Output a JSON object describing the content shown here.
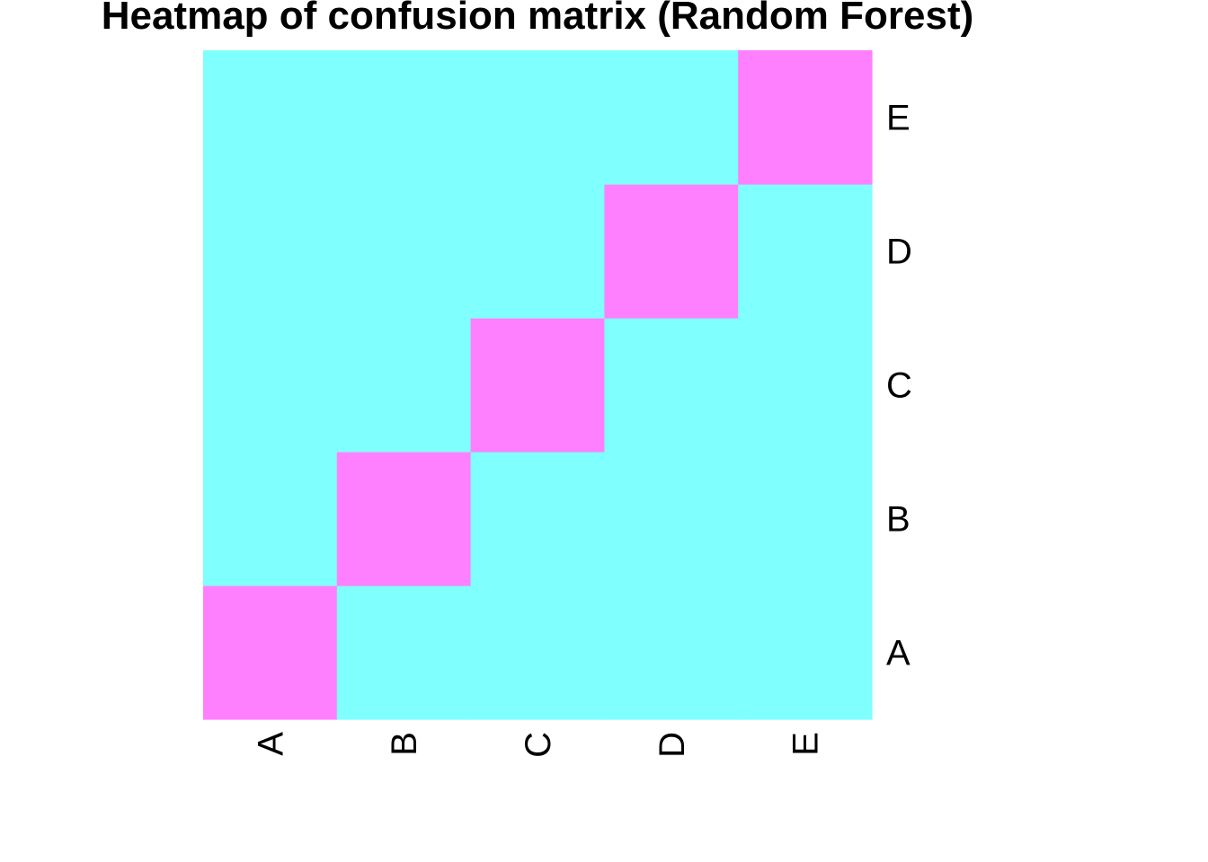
{
  "chart_data": {
    "type": "heatmap",
    "title": "Heatmap of confusion matrix (Random Forest)",
    "x_categories": [
      "A",
      "B",
      "C",
      "D",
      "E"
    ],
    "y_categories": [
      "A",
      "B",
      "C",
      "D",
      "E"
    ],
    "xlabel": "",
    "ylabel": "",
    "values": [
      [
        1,
        0,
        0,
        0,
        0
      ],
      [
        0,
        1,
        0,
        0,
        0
      ],
      [
        0,
        0,
        1,
        0,
        0
      ],
      [
        0,
        0,
        0,
        1,
        0
      ],
      [
        0,
        0,
        0,
        0,
        1
      ]
    ],
    "value_note_rows": "rows follow y_categories (bottom to top), columns follow x_categories (left to right)",
    "colors": {
      "high": "#ff80ff",
      "low": "#80ffff"
    },
    "legend": "none",
    "grid": false
  }
}
